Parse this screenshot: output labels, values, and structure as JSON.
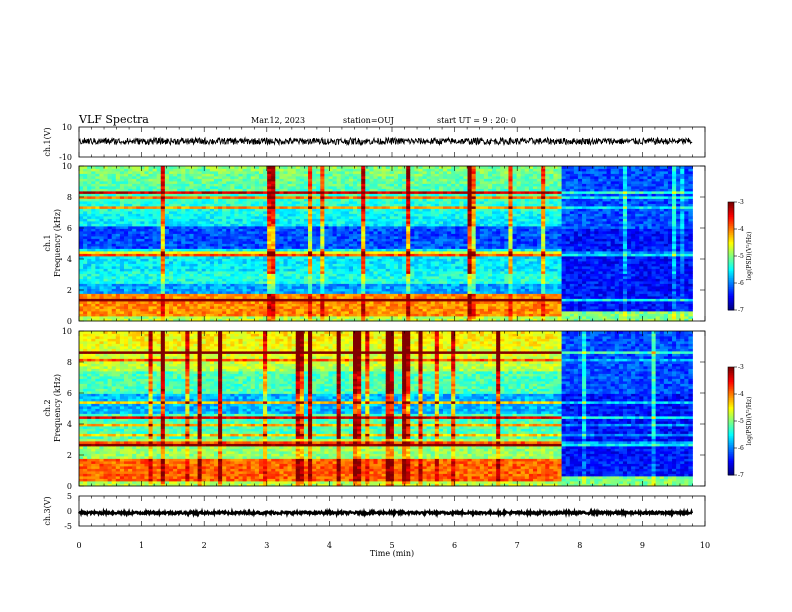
{
  "header": {
    "title": "VLF Spectra",
    "date": "Mar.12, 2023",
    "station": "station=OUJ",
    "start": "start UT = 9 : 20: 0"
  },
  "colorbar_colors": [
    "#000080",
    "#0000ff",
    "#0080ff",
    "#00ffff",
    "#80ff80",
    "#ffff00",
    "#ff8000",
    "#ff0000",
    "#800000"
  ],
  "chart_data": [
    {
      "type": "line",
      "panel": "ch1-waveform",
      "ylabel": "ch.1(V)",
      "ylim": [
        -10,
        10
      ],
      "ytick_labels": [
        "10",
        "-10"
      ],
      "xlim": [
        0,
        10
      ],
      "level": 0.5
    },
    {
      "type": "heatmap",
      "panel": "ch1-spectrogram",
      "ylabel_lines": [
        "ch.1",
        "Frequency (kHz)"
      ],
      "ylim": [
        0,
        10
      ],
      "ytick_labels": [
        "0",
        "2",
        "4",
        "6",
        "8",
        "10"
      ],
      "xlim": [
        0,
        10
      ],
      "data_end_min": 9.8,
      "change_min": 7.7,
      "colorbar": {
        "label": "log(PSD)(V²/Hz)",
        "range": [
          -7,
          -3
        ],
        "tick_labels": [
          "-7",
          "-6",
          "-5",
          "-4",
          "-3"
        ]
      }
    },
    {
      "type": "heatmap",
      "panel": "ch2-spectrogram",
      "ylabel_lines": [
        "ch.2",
        "Frequency (kHz)"
      ],
      "ylim": [
        0,
        10
      ],
      "ytick_labels": [
        "0",
        "2",
        "4",
        "6",
        "8",
        "10"
      ],
      "xlim": [
        0,
        10
      ],
      "data_end_min": 9.8,
      "change_min": 7.7,
      "colorbar": {
        "label": "log(PSD)(V²/Hz)",
        "range": [
          -7,
          -3
        ],
        "tick_labels": [
          "-7",
          "-6",
          "-5",
          "-4",
          "-3"
        ]
      }
    },
    {
      "type": "line",
      "panel": "ch3-waveform",
      "ylabel": "ch.3(V)",
      "ylim": [
        -5,
        5
      ],
      "ytick_labels": [
        "5",
        "0",
        "-5"
      ],
      "xlim": [
        0,
        10
      ],
      "level": -0.6,
      "xlabel": "Time (min)",
      "xtick_labels": [
        "0",
        "1",
        "2",
        "3",
        "4",
        "5",
        "6",
        "7",
        "8",
        "9",
        "10"
      ]
    }
  ]
}
